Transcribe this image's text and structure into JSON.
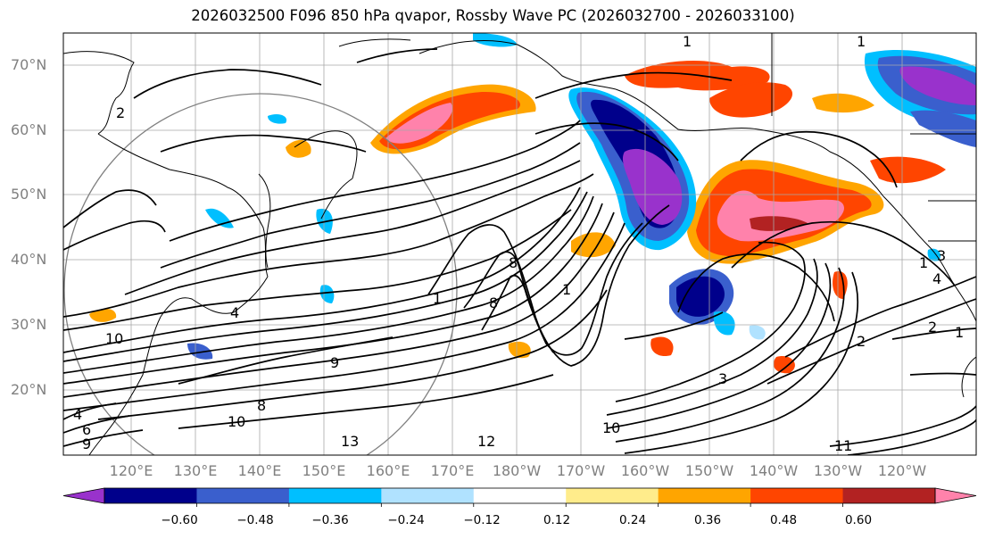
{
  "title": "2026032500 F096 850 hPa qvapor, Rossby Wave PC (2026032700 - 2026033100)",
  "lat_labels": [
    "70°N",
    "60°N",
    "50°N",
    "40°N",
    "30°N",
    "20°N"
  ],
  "lon_labels": [
    "120°E",
    "130°E",
    "140°E",
    "150°E",
    "160°E",
    "170°E",
    "180°W",
    "170°W",
    "160°W",
    "150°W",
    "140°W",
    "130°W",
    "120°W"
  ],
  "colorbar": {
    "colors": [
      "#9932cc",
      "#00008b",
      "#3a5fcd",
      "#00bfff",
      "#b0e2ff",
      "#ffffff",
      "#ffec8b",
      "#ffa500",
      "#ff4500",
      "#b22222",
      "#ff82ab"
    ],
    "ticks": [
      "−0.60",
      "−0.48",
      "−0.36",
      "−0.24",
      "−0.12",
      "0.12",
      "0.24",
      "0.36",
      "0.48",
      "0.60"
    ]
  },
  "contour_labels": [
    "1",
    "1",
    "2",
    "1",
    "4",
    "10",
    "6",
    "9",
    "4",
    "10",
    "8",
    "13",
    "12",
    "1",
    "9",
    "8",
    "3",
    "1",
    "2",
    "1",
    "3",
    "2",
    "8",
    "10",
    "4",
    "11"
  ]
}
